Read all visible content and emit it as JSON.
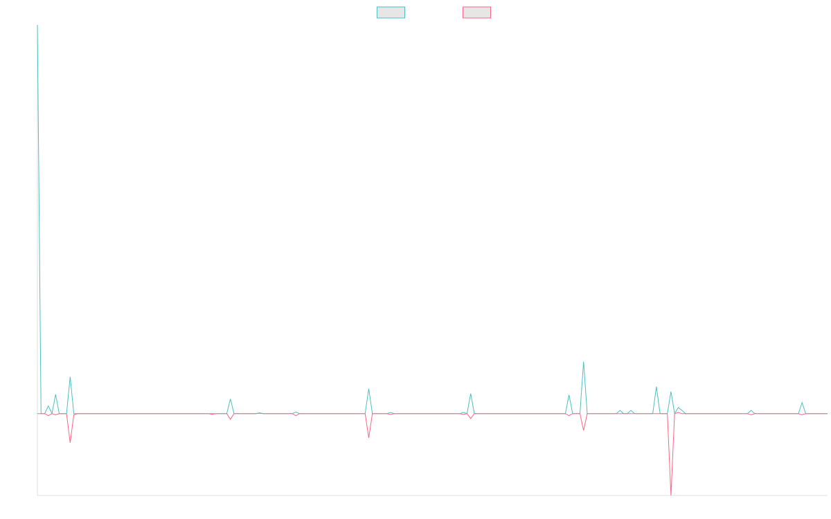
{
  "chart_data": {
    "type": "line",
    "x": [
      0,
      1,
      2,
      3,
      4,
      5,
      6,
      8,
      9,
      10,
      11,
      47,
      48,
      49,
      52,
      53,
      54,
      60,
      61,
      62,
      70,
      71,
      72,
      90,
      91,
      92,
      96,
      97,
      98,
      116,
      117,
      118,
      119,
      120,
      145,
      146,
      147,
      149,
      150,
      151,
      159,
      160,
      161,
      162,
      163,
      164,
      169,
      170,
      171,
      173,
      174,
      175,
      176,
      177,
      178,
      195,
      196,
      197,
      209,
      210,
      211,
      217
    ],
    "xlim": [
      0,
      217
    ],
    "ylim": [
      -20,
      95
    ],
    "legend": "top",
    "series": [
      {
        "color": "#4bc0c0",
        "values": [
          95,
          0,
          0,
          1.9,
          0,
          4.7,
          0,
          0,
          9,
          0,
          0,
          0,
          0,
          0,
          0,
          3.6,
          0,
          0,
          0.2,
          0,
          0,
          0.4,
          0,
          0,
          6.1,
          0,
          0,
          0.3,
          0,
          0,
          0.3,
          0,
          4.9,
          0,
          0,
          4.6,
          0,
          0,
          12.7,
          0,
          0,
          0.8,
          0,
          0,
          0.8,
          0,
          0,
          6.6,
          0,
          0,
          5.4,
          0,
          1.5,
          0.8,
          0,
          0,
          0.8,
          0,
          0,
          2.7,
          0,
          0
        ]
      },
      {
        "color": "#ff6384",
        "values": [
          0,
          0,
          0,
          -0.5,
          0,
          -0.3,
          0,
          0,
          -7.1,
          -0.3,
          0,
          0,
          -0.2,
          0,
          0,
          -1.4,
          0,
          0,
          0.1,
          0,
          0,
          -0.5,
          0,
          0,
          -5.9,
          0,
          0,
          -0.2,
          0,
          0,
          -0.2,
          0,
          -1.2,
          0,
          0,
          -0.5,
          0,
          0,
          -4.1,
          0,
          0,
          0,
          0,
          0,
          0,
          0,
          0,
          0,
          0,
          0,
          -20,
          0,
          0.3,
          0,
          0,
          0,
          -0.3,
          0,
          0,
          -0.3,
          0,
          0
        ]
      }
    ]
  }
}
